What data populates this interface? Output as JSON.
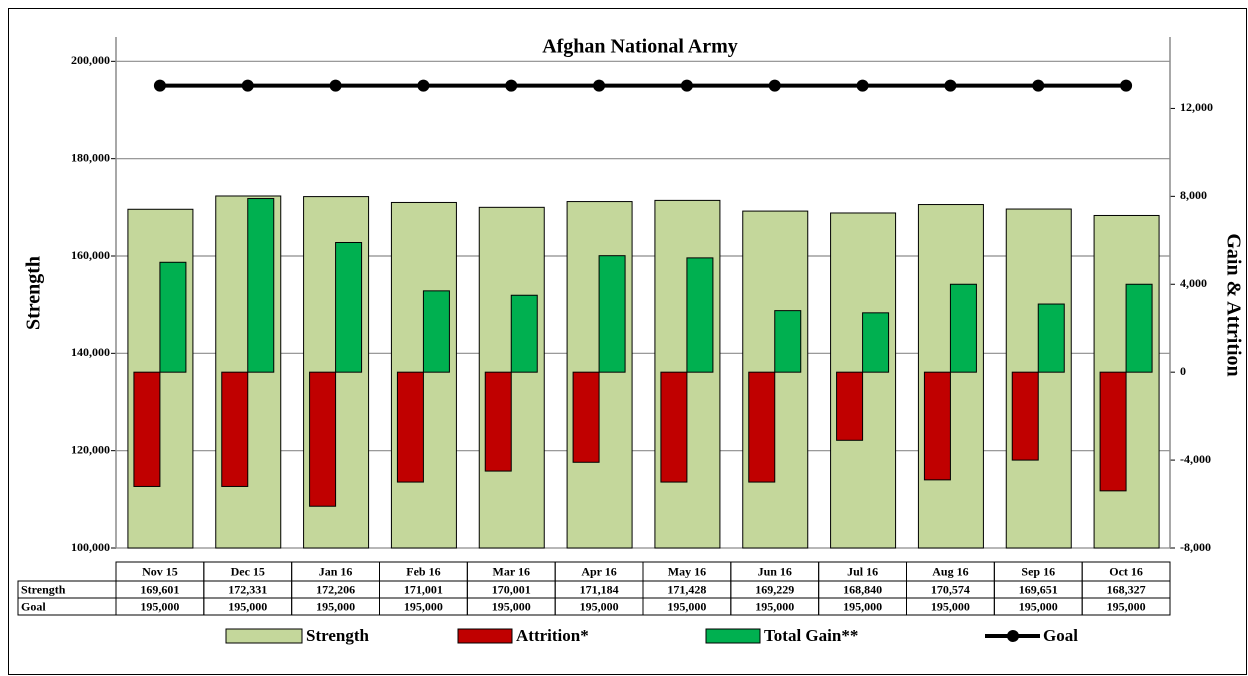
{
  "chart_data": {
    "type": "bar",
    "title": "Afghan National Army",
    "ylabel": "Strength",
    "y2label": "Gain & Attrition",
    "categories": [
      "Nov 15",
      "Dec 15",
      "Jan 16",
      "Feb 16",
      "Mar 16",
      "Apr 16",
      "May 16",
      "Jun 16",
      "Jul 16",
      "Aug 16",
      "Sep 16",
      "Oct 16"
    ],
    "series": [
      {
        "name": "Strength",
        "type": "bar",
        "color": "#c4d79b",
        "values": [
          169601,
          172331,
          172206,
          171001,
          170001,
          171184,
          171428,
          169229,
          168840,
          170574,
          169651,
          168327
        ],
        "value_labels": [
          "169,601",
          "172,331",
          "172,206",
          "171,001",
          "170,001",
          "171,184",
          "171,428",
          "169,229",
          "168,840",
          "170,574",
          "169,651",
          "168,327"
        ]
      },
      {
        "name": "Attrition*",
        "type": "bar",
        "axis": "y2",
        "color": "#c00000",
        "values": [
          -5200,
          -5200,
          -6100,
          -5000,
          -4500,
          -4100,
          -5000,
          -5000,
          -3100,
          -4900,
          -4000,
          -5400
        ]
      },
      {
        "name": "Total Gain**",
        "type": "bar",
        "axis": "y2",
        "color": "#00b050",
        "values": [
          5000,
          7900,
          5900,
          3700,
          3500,
          5300,
          5200,
          2800,
          2700,
          4000,
          3100,
          4000
        ]
      },
      {
        "name": "Goal",
        "type": "line",
        "color": "#000000",
        "values": [
          195000,
          195000,
          195000,
          195000,
          195000,
          195000,
          195000,
          195000,
          195000,
          195000,
          195000,
          195000
        ],
        "value_labels": [
          "195,000",
          "195,000",
          "195,000",
          "195,000",
          "195,000",
          "195,000",
          "195,000",
          "195,000",
          "195,000",
          "195,000",
          "195,000",
          "195,000"
        ]
      }
    ],
    "ylim": [
      100000,
      205000
    ],
    "yticks": [
      {
        "value": 100000,
        "label": "100,000"
      },
      {
        "value": 120000,
        "label": "120,000"
      },
      {
        "value": 140000,
        "label": "140,000"
      },
      {
        "value": 160000,
        "label": "160,000"
      },
      {
        "value": 180000,
        "label": "180,000"
      },
      {
        "value": 200000,
        "label": "200,000"
      }
    ],
    "y2lim": [
      -8000,
      15250
    ],
    "y2ticks": [
      {
        "value": -8000,
        "label": "-8,000"
      },
      {
        "value": -4000,
        "label": "-4,000"
      },
      0,
      {
        "value": 4000,
        "label": "4,000"
      },
      {
        "value": 8000,
        "label": "8,000"
      },
      {
        "value": 12000,
        "label": "12,000"
      }
    ],
    "grid": true,
    "legend": "bottom"
  }
}
